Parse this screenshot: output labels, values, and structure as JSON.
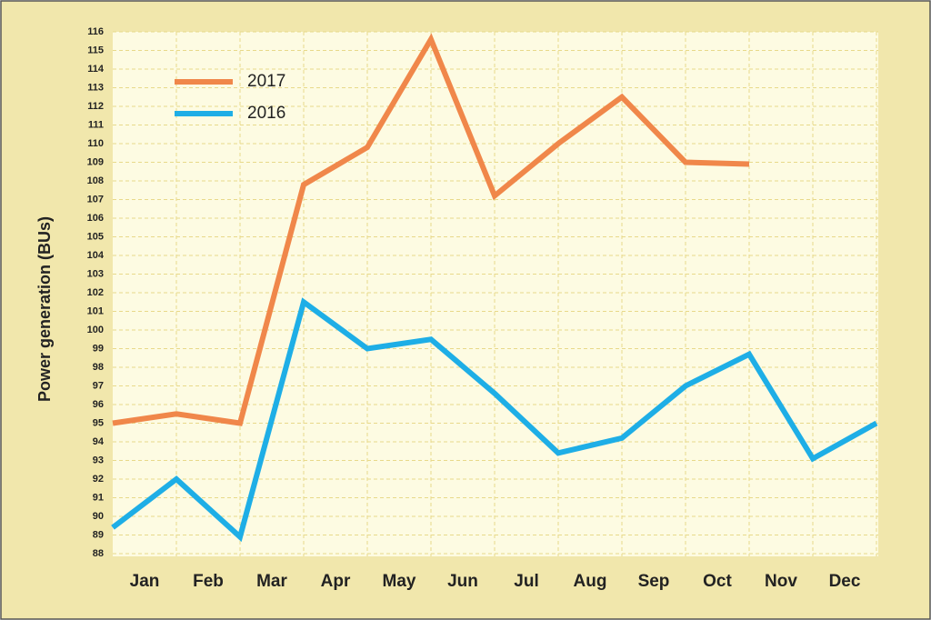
{
  "chart_data": {
    "type": "line",
    "y_label": "Power generation (BUs)",
    "categories": [
      null,
      "Jan",
      "Feb",
      "Mar",
      "Apr",
      "May",
      "Jun",
      "Jul",
      "Aug",
      "Sep",
      "Oct",
      "Nov",
      "Dec"
    ],
    "series": [
      {
        "name": "2017",
        "color": "#f0874a",
        "values": [
          95,
          95.5,
          95,
          107.8,
          109.8,
          115.6,
          107.2,
          110,
          112.5,
          109,
          108.9,
          null,
          null
        ]
      },
      {
        "name": "2016",
        "color": "#1eaee6",
        "values": [
          89.4,
          92,
          88.9,
          101.5,
          99,
          99.5,
          96.6,
          93.4,
          94.2,
          97,
          98.7,
          93.1,
          95
        ]
      }
    ],
    "ylim": [
      88,
      116
    ],
    "yticks": [
      88,
      89,
      90,
      91,
      92,
      93,
      94,
      95,
      96,
      97,
      98,
      99,
      100,
      101,
      102,
      103,
      104,
      105,
      106,
      107,
      108,
      109,
      110,
      111,
      112,
      113,
      114,
      115,
      116
    ],
    "grid": true
  }
}
